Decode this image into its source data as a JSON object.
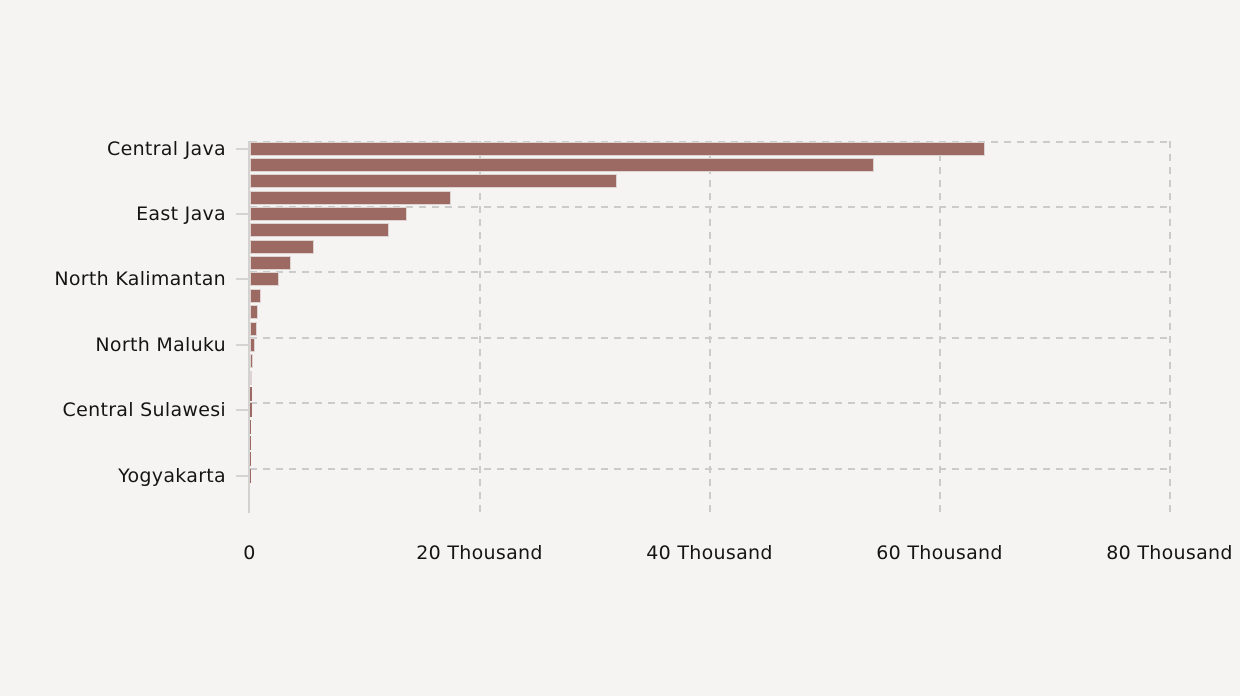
{
  "chart_data": {
    "type": "bar",
    "orientation": "horizontal",
    "categories": [
      "Central Java",
      "",
      "",
      "",
      "East Java",
      "",
      "",
      "",
      "North Kalimantan",
      "",
      "",
      "",
      "North Maluku",
      "",
      "",
      "",
      "Central Sulawesi",
      "",
      "",
      "",
      "Yogyakarta",
      ""
    ],
    "values": [
      63900,
      54300,
      31900,
      17500,
      13650,
      12050,
      5600,
      3550,
      2500,
      950,
      720,
      630,
      450,
      230,
      190,
      160,
      150,
      60,
      35,
      20,
      10,
      5
    ],
    "y_axis": {
      "tick_indices": [
        0,
        4,
        8,
        12,
        16,
        20
      ],
      "tick_labels": [
        "Central Java",
        "East Java",
        "North Kalimantan",
        "North Maluku",
        "Central Sulawesi",
        "Yogyakarta"
      ]
    },
    "x_axis": {
      "range": [
        0,
        80000
      ],
      "ticks": [
        {
          "value": 0,
          "label": "0"
        },
        {
          "value": 20000,
          "label": "20 Thousand"
        },
        {
          "value": 40000,
          "label": "40 Thousand"
        },
        {
          "value": 60000,
          "label": "60 Thousand"
        },
        {
          "value": 80000,
          "label": "80 Thousand"
        }
      ]
    },
    "title": "",
    "legend": "none",
    "grid": "dashed",
    "style": {
      "bar_fill": "#9c6a62",
      "bar_border": "#ddd3d0",
      "grid_color": "#cbcbcb",
      "axis_color": "#d4d2d0",
      "text_color": "#141414",
      "background": "#f5f4f2"
    }
  }
}
